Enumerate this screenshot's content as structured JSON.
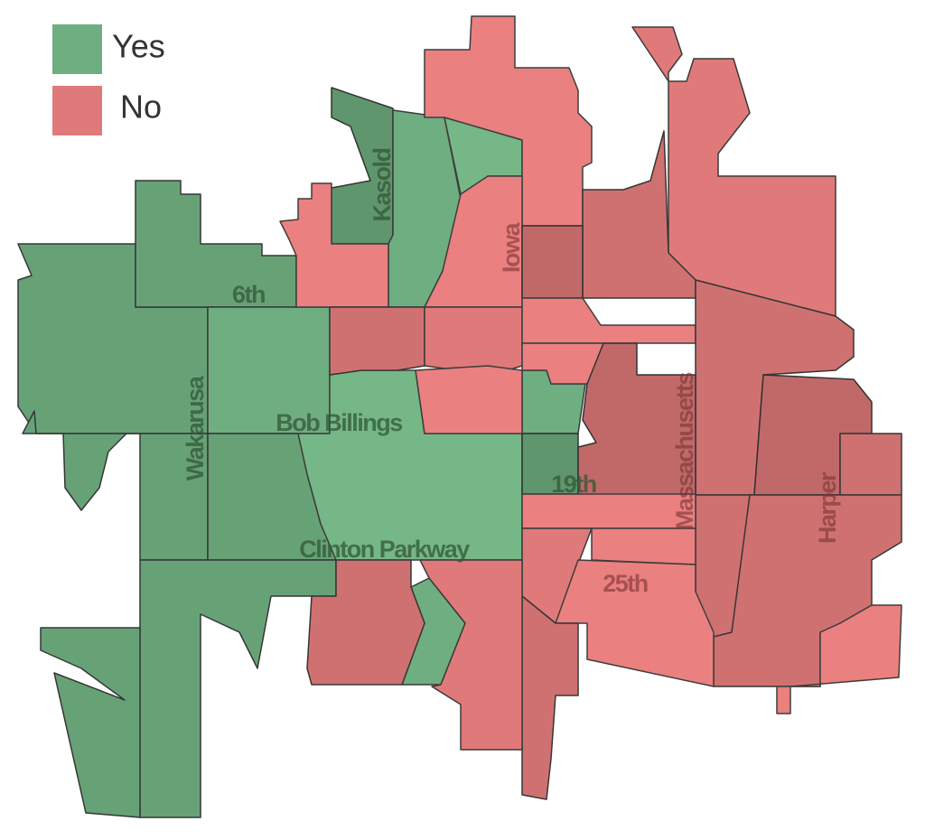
{
  "legend": {
    "items": [
      {
        "label": "Yes",
        "color": "#6fae80"
      },
      {
        "label": "No",
        "color": "#e07a7a"
      }
    ]
  },
  "streets": [
    "6th",
    "Kasold",
    "Iowa",
    "Bob Billings",
    "Wakarusa",
    "19th",
    "Clinton Parkway",
    "Massachusetts",
    "25th",
    "Harper"
  ]
}
